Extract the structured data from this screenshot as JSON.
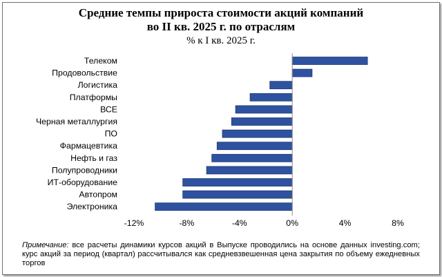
{
  "title_line1": "Средние темпы прироста стоимости акций компаний",
  "title_line2": "во II кв. 2025 г. по отраслям",
  "subtitle": "% к I кв. 2025 г.",
  "note": {
    "label": "Примечание:",
    "text": " все расчеты динамики курсов акций в Выпуске проводились на основе данных investing.com; курс акций за период (квартал) рассчитывался как средневзвешенная цена закрытия по объему ежедневных торгов"
  },
  "colors": {
    "bar_fill": "#2f52a0",
    "bar_stroke": "#1f3a78"
  },
  "chart_data": {
    "type": "bar",
    "orientation": "horizontal",
    "categories": [
      "Телеком",
      "Продовольствие",
      "Логистика",
      "Платформы",
      "ВСЕ",
      "Черная металлургия",
      "ПО ",
      "Фармацевтика",
      "Нефть и газ",
      "Полупроводники",
      "ИТ-оборудование",
      "Автопром",
      "Электроника"
    ],
    "values": [
      5.7,
      1.5,
      -1.7,
      -3.2,
      -4.3,
      -4.6,
      -5.3,
      -5.7,
      -6.1,
      -6.5,
      -8.3,
      -8.3,
      -10.4
    ],
    "xlim": [
      -12,
      8
    ],
    "xticks": [
      -12,
      -8,
      -4,
      0,
      4,
      8
    ],
    "xtick_labels": [
      "-12%",
      "-8%",
      "-4%",
      "0%",
      "4%",
      "8%"
    ],
    "grid": false,
    "legend": "none"
  }
}
